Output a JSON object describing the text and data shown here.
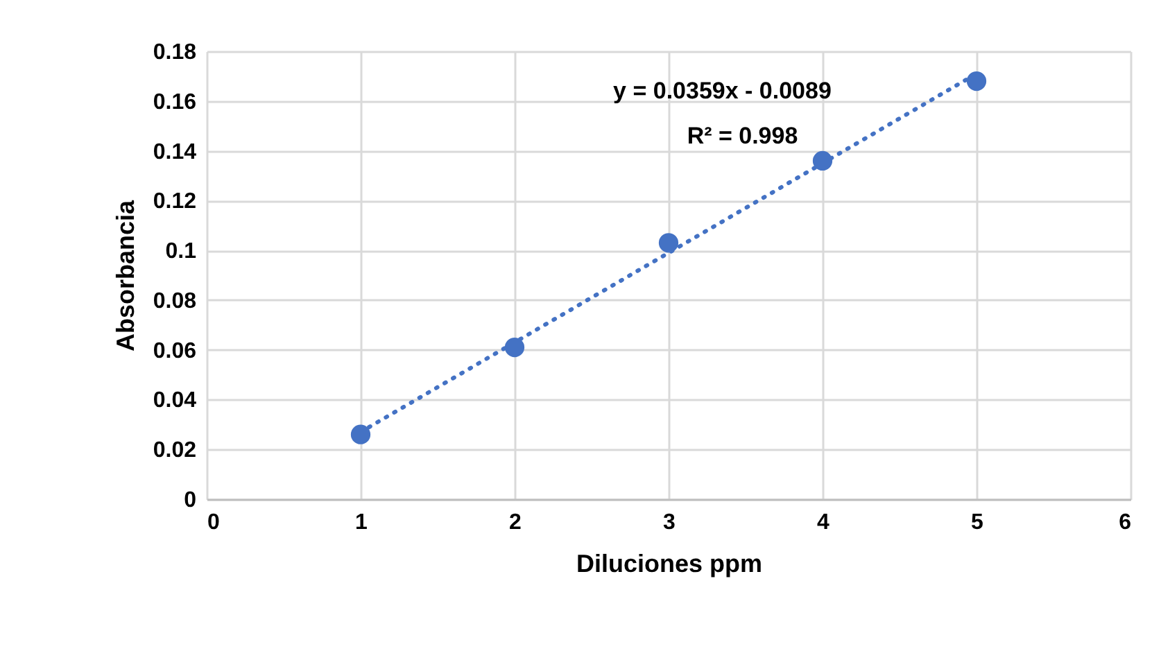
{
  "chart_data": {
    "type": "scatter",
    "xlabel": "Diluciones ppm",
    "ylabel": "Absorbancia",
    "x": [
      1,
      2,
      3,
      4,
      5
    ],
    "series": [
      {
        "type": "scatter",
        "color": "#4472c4",
        "values": [
          0.026,
          0.061,
          0.103,
          0.136,
          0.168
        ],
        "marker": "circle"
      },
      {
        "type": "line",
        "color": "#4472c4",
        "x": [
          1,
          5
        ],
        "values": [
          0.027,
          0.171
        ],
        "line_style": "dotted"
      }
    ],
    "annotations": [
      "y = 0.0359x - 0.0089",
      "R² = 0.998"
    ],
    "xlim": [
      0,
      6
    ],
    "xticks": [
      0,
      1,
      2,
      3,
      4,
      5,
      6
    ],
    "ylim": [
      0,
      0.18
    ],
    "yticks": [
      0,
      0.02,
      0.04,
      0.06,
      0.08,
      0.1,
      0.12,
      0.14,
      0.16,
      0.18
    ],
    "grid": true
  }
}
